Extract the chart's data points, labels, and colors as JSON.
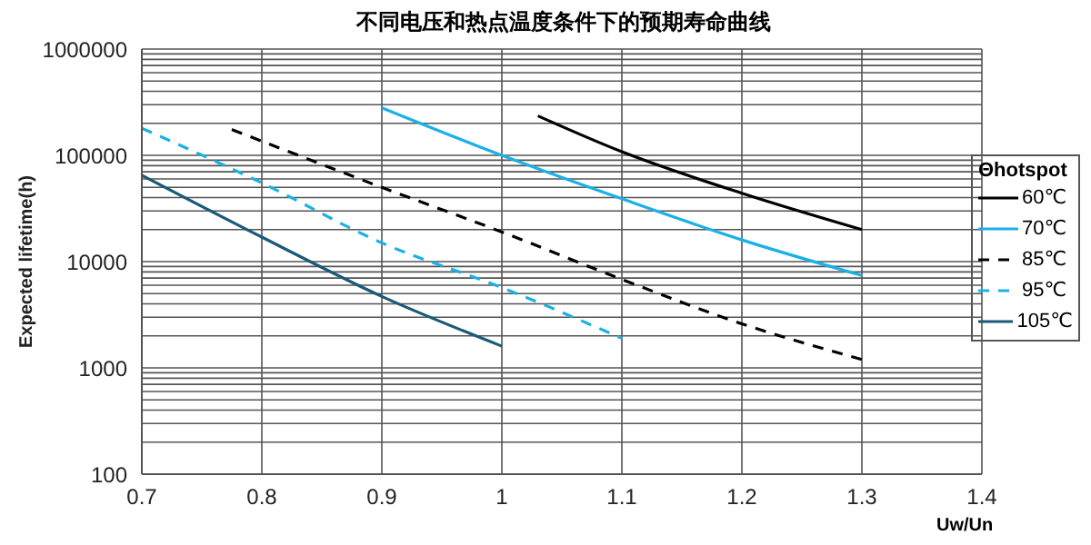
{
  "chart_data": {
    "type": "line",
    "title": "不同电压和热点温度条件下的预期寿命曲线",
    "xlabel": "Uw/Un",
    "ylabel": "Expected lifetime(h)",
    "legend_title": "Θhotspot",
    "legend": "right",
    "grid": true,
    "log": "y",
    "marker": "none",
    "xlim": [
      0.7,
      1.4
    ],
    "xticks": [
      0.7,
      0.8,
      0.9,
      1,
      1.1,
      1.2,
      1.3,
      1.4
    ],
    "ylim": [
      100,
      1000000
    ],
    "yticks": [
      100,
      {
        "value": 200,
        "label": null
      },
      {
        "value": 300,
        "label": null
      },
      {
        "value": 400,
        "label": null
      },
      {
        "value": 500,
        "label": null
      },
      {
        "value": 600,
        "label": null
      },
      {
        "value": 700,
        "label": null
      },
      {
        "value": 800,
        "label": null
      },
      {
        "value": 900,
        "label": null
      },
      1000,
      {
        "value": 2000,
        "label": null
      },
      {
        "value": 3000,
        "label": null
      },
      {
        "value": 4000,
        "label": null
      },
      {
        "value": 5000,
        "label": null
      },
      {
        "value": 6000,
        "label": null
      },
      {
        "value": 7000,
        "label": null
      },
      {
        "value": 8000,
        "label": null
      },
      {
        "value": 9000,
        "label": null
      },
      10000,
      {
        "value": 20000,
        "label": null
      },
      {
        "value": 30000,
        "label": null
      },
      {
        "value": 40000,
        "label": null
      },
      {
        "value": 50000,
        "label": null
      },
      {
        "value": 60000,
        "label": null
      },
      {
        "value": 70000,
        "label": null
      },
      {
        "value": 80000,
        "label": null
      },
      {
        "value": 90000,
        "label": null
      },
      100000,
      {
        "value": 200000,
        "label": null
      },
      {
        "value": 300000,
        "label": null
      },
      {
        "value": 400000,
        "label": null
      },
      {
        "value": 500000,
        "label": null
      },
      {
        "value": 600000,
        "label": null
      },
      {
        "value": 700000,
        "label": null
      },
      {
        "value": 800000,
        "label": null
      },
      {
        "value": 900000,
        "label": null
      },
      1000000
    ],
    "series": [
      {
        "name": "60℃",
        "color": "#000000",
        "line_style": "solid",
        "x": [
          1.03,
          1.1,
          1.2,
          1.3
        ],
        "values": [
          235000,
          108000,
          44000,
          20000
        ]
      },
      {
        "name": "70℃",
        "color": "#1ab0e8",
        "line_style": "solid",
        "x": [
          0.9,
          1,
          1.1,
          1.2,
          1.3
        ],
        "values": [
          280000,
          100000,
          39000,
          16000,
          7400
        ]
      },
      {
        "name": "85℃",
        "color": "#000000",
        "line_style": "dashed",
        "x": [
          0.775,
          0.9,
          1,
          1.1,
          1.2,
          1.3
        ],
        "values": [
          175000,
          50000,
          19000,
          6800,
          2600,
          1200
        ]
      },
      {
        "name": "95℃",
        "color": "#1ab0e8",
        "line_style": "dashed",
        "x": [
          0.7,
          0.8,
          0.9,
          1,
          1.1
        ],
        "values": [
          180000,
          55000,
          15000,
          5700,
          1900
        ]
      },
      {
        "name": "105℃",
        "color": "#1a5a78",
        "line_style": "solid",
        "x": [
          0.7,
          0.8,
          0.9,
          1
        ],
        "values": [
          65000,
          17000,
          4700,
          1600
        ]
      }
    ]
  }
}
